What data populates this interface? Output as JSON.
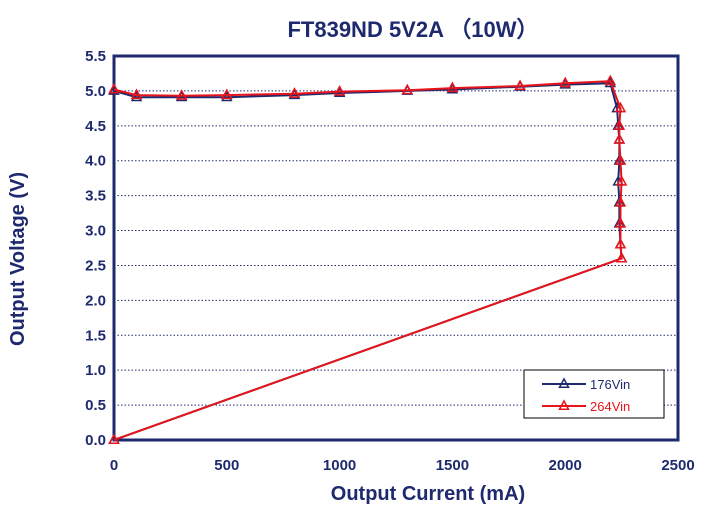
{
  "chart_data": {
    "type": "line",
    "title": "FT839ND 5V2A （10W）",
    "xlabel": "Output Current (mA)",
    "ylabel": "Output Voltage (V)",
    "xlim": [
      0,
      2500
    ],
    "ylim": [
      0,
      5.5
    ],
    "xticks": [
      0,
      500,
      1000,
      1500,
      2000,
      2500
    ],
    "yticks": [
      0.0,
      0.5,
      1.0,
      1.5,
      2.0,
      2.5,
      3.0,
      3.5,
      4.0,
      4.5,
      5.0,
      5.5
    ],
    "xtick_labels": [
      "0",
      "500",
      "1000",
      "1500",
      "2000",
      "2500"
    ],
    "ytick_labels": [
      "0.0",
      "0.5",
      "1.0",
      "1.5",
      "2.0",
      "2.5",
      "3.0",
      "3.5",
      "4.0",
      "4.5",
      "5.0",
      "5.5"
    ],
    "grid": "horizontal dotted",
    "legend_position": "bottom-right",
    "series": [
      {
        "name": "176Vin",
        "color": "#1f2a6e",
        "marker": "triangle",
        "x": [
          0,
          100,
          300,
          500,
          800,
          1000,
          1300,
          1500,
          1800,
          2000,
          2200,
          2230,
          2235,
          2240,
          2240,
          2235,
          2240,
          2240,
          2245,
          2250,
          0
        ],
        "y": [
          5.0,
          4.91,
          4.91,
          4.91,
          4.94,
          4.97,
          5.0,
          5.02,
          5.06,
          5.09,
          5.11,
          4.75,
          4.5,
          4.3,
          4.0,
          3.7,
          3.4,
          3.1,
          2.8,
          2.6,
          0.0
        ]
      },
      {
        "name": "264Vin",
        "color": "#e8141b",
        "marker": "triangle",
        "x": [
          0,
          100,
          300,
          500,
          800,
          1000,
          1300,
          1500,
          1800,
          2000,
          2200,
          2245,
          2240,
          2240,
          2245,
          2250,
          2245,
          2245,
          2245,
          2250,
          0
        ],
        "y": [
          5.02,
          4.94,
          4.93,
          4.94,
          4.96,
          4.99,
          5.01,
          5.04,
          5.07,
          5.11,
          5.14,
          4.75,
          4.5,
          4.3,
          4.0,
          3.7,
          3.4,
          3.1,
          2.8,
          2.6,
          0.0
        ]
      }
    ]
  },
  "colors": {
    "frame": "#1f2a6e",
    "text": "#1f2a6e",
    "grid": "#1f2a6e"
  }
}
